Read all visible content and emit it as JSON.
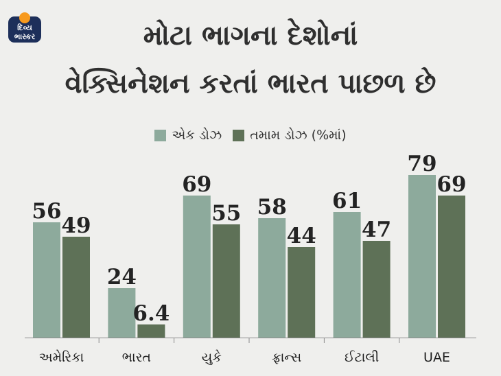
{
  "logo": {
    "line1": "દિવ્ય",
    "line2": "ભાસ્કર",
    "icon": "sun-icon",
    "colors": {
      "badge": "#1d2f5a",
      "sun": "#f79a1e"
    }
  },
  "title": {
    "line1": "મોટા ભાગના દેશોનાં",
    "line2": "વેક્સિનેશન કરતાં ભારત પાછળ છે"
  },
  "colors": {
    "background": "#efefed",
    "series1": "#8daa9c",
    "series2": "#5e7157",
    "baseline": "#8a8a8a"
  },
  "chart_data": {
    "type": "bar",
    "title": "મોટા ભાગના દેશોનાં વેક્સિનેશન કરતાં ભારત પાછળ છે",
    "categories": [
      "અમેરિકા",
      "ભારત",
      "યુકે",
      "ફ્રાન્સ",
      "ઈટાલી",
      "UAE"
    ],
    "series": [
      {
        "name": "એક ડોઝ",
        "values": [
          56,
          24,
          69,
          58,
          61,
          79
        ],
        "labels": [
          "56",
          "24",
          "69",
          "58",
          "61",
          "79"
        ]
      },
      {
        "name": "તમામ ડોઝ (%માં)",
        "values": [
          49,
          6.4,
          55,
          44,
          47,
          69
        ],
        "labels": [
          "49",
          "6.4",
          "55",
          "44",
          "47",
          "69"
        ]
      }
    ],
    "ylim": [
      0,
      100
    ],
    "grid": false,
    "legend_position": "top-center"
  }
}
